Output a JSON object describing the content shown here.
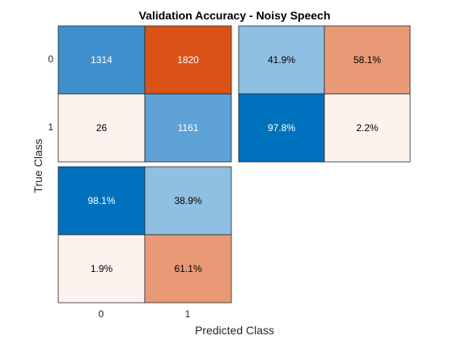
{
  "chart_data": {
    "type": "heatmap",
    "title": "Validation Accuracy - Noisy Speech",
    "xlabel": "Predicted Class",
    "ylabel": "True Class",
    "classes": [
      "0",
      "1"
    ],
    "confusion_matrix": {
      "cells": [
        [
          {
            "value": 1314,
            "label": "1314",
            "fill": "#3f8fcd",
            "text_color": "#ffffff"
          },
          {
            "value": 1820,
            "label": "1820",
            "fill": "#d95319",
            "text_color": "#ffffff"
          }
        ],
        [
          {
            "value": 26,
            "label": "26",
            "fill": "#fdf2ee",
            "text_color": "#000000"
          },
          {
            "value": 1161,
            "label": "1161",
            "fill": "#5ea2d6",
            "text_color": "#ffffff"
          }
        ]
      ]
    },
    "row_summary": {
      "cells": [
        [
          {
            "value": 41.9,
            "label": "41.9%",
            "fill": "#8fbfe2",
            "text_color": "#000000"
          },
          {
            "value": 58.1,
            "label": "58.1%",
            "fill": "#e89a77",
            "text_color": "#000000"
          }
        ],
        [
          {
            "value": 97.8,
            "label": "97.8%",
            "fill": "#0072bd",
            "text_color": "#ffffff"
          },
          {
            "value": 2.2,
            "label": "2.2%",
            "fill": "#fdf2ee",
            "text_color": "#000000"
          }
        ]
      ]
    },
    "column_summary": {
      "cells": [
        [
          {
            "value": 98.1,
            "label": "98.1%",
            "fill": "#0072bd",
            "text_color": "#ffffff"
          },
          {
            "value": 38.9,
            "label": "38.9%",
            "fill": "#8fbfe2",
            "text_color": "#000000"
          }
        ],
        [
          {
            "value": 1.9,
            "label": "1.9%",
            "fill": "#fdf2ee",
            "text_color": "#000000"
          },
          {
            "value": 61.1,
            "label": "61.1%",
            "fill": "#e89a77",
            "text_color": "#000000"
          }
        ]
      ]
    }
  }
}
